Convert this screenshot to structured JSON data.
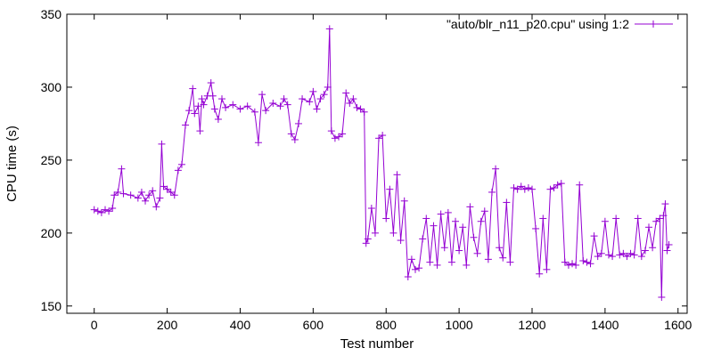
{
  "chart_data": {
    "type": "line",
    "title": "",
    "xlabel": "Test number",
    "ylabel": "CPU time (s)",
    "xlim": [
      -75,
      1625
    ],
    "ylim": [
      145,
      350
    ],
    "xticks": [
      0,
      200,
      400,
      600,
      800,
      1000,
      1200,
      1400,
      1600
    ],
    "yticks": [
      150,
      200,
      250,
      300,
      350
    ],
    "grid": false,
    "legend_position": "top-right",
    "series": [
      {
        "name": "\"auto/blr_n11_p20.cpu\" using 1:2",
        "color": "#9400d3",
        "marker": "plus",
        "points": [
          [
            0,
            216
          ],
          [
            10,
            215
          ],
          [
            20,
            214
          ],
          [
            30,
            216
          ],
          [
            40,
            215
          ],
          [
            50,
            217
          ],
          [
            55,
            226
          ],
          [
            65,
            228
          ],
          [
            75,
            244
          ],
          [
            80,
            227
          ],
          [
            100,
            226
          ],
          [
            120,
            224
          ],
          [
            130,
            228
          ],
          [
            140,
            222
          ],
          [
            150,
            226
          ],
          [
            160,
            229
          ],
          [
            170,
            218
          ],
          [
            180,
            224
          ],
          [
            185,
            261
          ],
          [
            190,
            232
          ],
          [
            200,
            230
          ],
          [
            210,
            228
          ],
          [
            220,
            226
          ],
          [
            230,
            243
          ],
          [
            240,
            247
          ],
          [
            250,
            274
          ],
          [
            260,
            284
          ],
          [
            270,
            299
          ],
          [
            275,
            282
          ],
          [
            285,
            287
          ],
          [
            290,
            270
          ],
          [
            295,
            292
          ],
          [
            300,
            288
          ],
          [
            310,
            294
          ],
          [
            320,
            303
          ],
          [
            325,
            294
          ],
          [
            330,
            285
          ],
          [
            340,
            278
          ],
          [
            350,
            292
          ],
          [
            360,
            286
          ],
          [
            380,
            288
          ],
          [
            400,
            285
          ],
          [
            420,
            287
          ],
          [
            440,
            283
          ],
          [
            450,
            262
          ],
          [
            460,
            295
          ],
          [
            470,
            284
          ],
          [
            490,
            289
          ],
          [
            510,
            287
          ],
          [
            520,
            292
          ],
          [
            530,
            288
          ],
          [
            540,
            268
          ],
          [
            550,
            264
          ],
          [
            560,
            275
          ],
          [
            570,
            292
          ],
          [
            590,
            290
          ],
          [
            600,
            297
          ],
          [
            610,
            285
          ],
          [
            620,
            292
          ],
          [
            630,
            295
          ],
          [
            640,
            300
          ],
          [
            645,
            340
          ],
          [
            650,
            270
          ],
          [
            660,
            265
          ],
          [
            670,
            266
          ],
          [
            680,
            268
          ],
          [
            690,
            296
          ],
          [
            700,
            289
          ],
          [
            710,
            292
          ],
          [
            720,
            286
          ],
          [
            730,
            285
          ],
          [
            740,
            283
          ],
          [
            745,
            193
          ],
          [
            750,
            196
          ],
          [
            760,
            217
          ],
          [
            770,
            200
          ],
          [
            780,
            265
          ],
          [
            790,
            267
          ],
          [
            800,
            210
          ],
          [
            810,
            230
          ],
          [
            820,
            200
          ],
          [
            830,
            240
          ],
          [
            840,
            195
          ],
          [
            850,
            222
          ],
          [
            860,
            170
          ],
          [
            870,
            182
          ],
          [
            880,
            175
          ],
          [
            890,
            176
          ],
          [
            900,
            196
          ],
          [
            910,
            210
          ],
          [
            920,
            180
          ],
          [
            930,
            205
          ],
          [
            940,
            178
          ],
          [
            950,
            213
          ],
          [
            960,
            190
          ],
          [
            970,
            214
          ],
          [
            980,
            180
          ],
          [
            990,
            208
          ],
          [
            1000,
            188
          ],
          [
            1010,
            204
          ],
          [
            1020,
            178
          ],
          [
            1030,
            218
          ],
          [
            1040,
            197
          ],
          [
            1050,
            186
          ],
          [
            1060,
            208
          ],
          [
            1070,
            215
          ],
          [
            1080,
            182
          ],
          [
            1090,
            228
          ],
          [
            1100,
            244
          ],
          [
            1110,
            190
          ],
          [
            1120,
            183
          ],
          [
            1130,
            221
          ],
          [
            1140,
            180
          ],
          [
            1150,
            231
          ],
          [
            1160,
            230
          ],
          [
            1170,
            232
          ],
          [
            1180,
            230
          ],
          [
            1190,
            231
          ],
          [
            1200,
            230
          ],
          [
            1210,
            203
          ],
          [
            1220,
            172
          ],
          [
            1230,
            210
          ],
          [
            1240,
            175
          ],
          [
            1250,
            230
          ],
          [
            1260,
            231
          ],
          [
            1270,
            233
          ],
          [
            1280,
            234
          ],
          [
            1290,
            180
          ],
          [
            1300,
            178
          ],
          [
            1310,
            179
          ],
          [
            1320,
            178
          ],
          [
            1330,
            233
          ],
          [
            1340,
            181
          ],
          [
            1350,
            180
          ],
          [
            1360,
            179
          ],
          [
            1370,
            198
          ],
          [
            1380,
            184
          ],
          [
            1390,
            186
          ],
          [
            1400,
            208
          ],
          [
            1410,
            185
          ],
          [
            1420,
            184
          ],
          [
            1430,
            210
          ],
          [
            1440,
            185
          ],
          [
            1450,
            186
          ],
          [
            1460,
            184
          ],
          [
            1470,
            186
          ],
          [
            1480,
            185
          ],
          [
            1490,
            210
          ],
          [
            1500,
            184
          ],
          [
            1510,
            188
          ],
          [
            1520,
            204
          ],
          [
            1530,
            190
          ],
          [
            1540,
            208
          ],
          [
            1550,
            210
          ],
          [
            1555,
            156
          ],
          [
            1560,
            212
          ],
          [
            1565,
            220
          ],
          [
            1570,
            188
          ],
          [
            1575,
            192
          ]
        ]
      }
    ]
  }
}
